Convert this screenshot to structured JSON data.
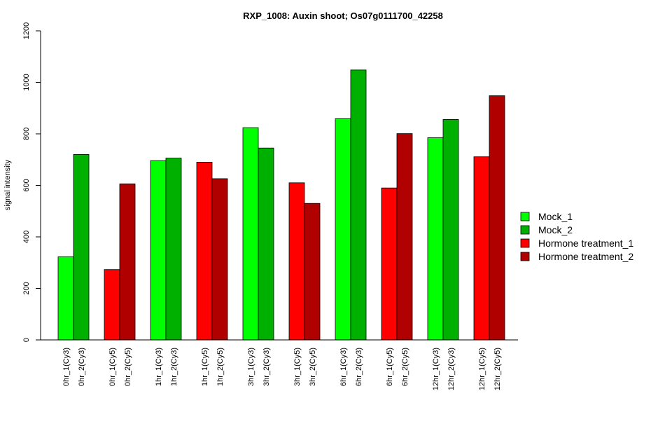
{
  "chart_data": {
    "type": "bar",
    "title": "RXP_1008: Auxin shoot; Os07g0111700_42258",
    "ylabel": "signal intensity",
    "xlabel": "",
    "ylim": [
      0,
      1200
    ],
    "yticks": [
      0,
      200,
      400,
      600,
      800,
      1000,
      1200
    ],
    "grid": false,
    "legend_position": "right",
    "series_colors": {
      "Mock_1": "#00ff00",
      "Mock_2": "#00b000",
      "Hormone treatment_1": "#ff0000",
      "Hormone treatment_2": "#b00000"
    },
    "legend": [
      {
        "name": "Mock_1",
        "color": "#00ff00"
      },
      {
        "name": "Mock_2",
        "color": "#00b000"
      },
      {
        "name": "Hormone treatment_1",
        "color": "#ff0000"
      },
      {
        "name": "Hormone treatment_2",
        "color": "#b00000"
      }
    ],
    "groups": [
      {
        "bars": [
          {
            "label": "0hr_1(Cy3)",
            "value": 323,
            "series": "Mock_1"
          },
          {
            "label": "0hr_2(Cy3)",
            "value": 720,
            "series": "Mock_2"
          }
        ]
      },
      {
        "bars": [
          {
            "label": "0hr_1(Cy5)",
            "value": 273,
            "series": "Hormone treatment_1"
          },
          {
            "label": "0hr_2(Cy5)",
            "value": 606,
            "series": "Hormone treatment_2"
          }
        ]
      },
      {
        "bars": [
          {
            "label": "1hr_1(Cy3)",
            "value": 696,
            "series": "Mock_1"
          },
          {
            "label": "1hr_2(Cy3)",
            "value": 706,
            "series": "Mock_2"
          }
        ]
      },
      {
        "bars": [
          {
            "label": "1hr_1(Cy5)",
            "value": 690,
            "series": "Hormone treatment_1"
          },
          {
            "label": "1hr_2(Cy5)",
            "value": 626,
            "series": "Hormone treatment_2"
          }
        ]
      },
      {
        "bars": [
          {
            "label": "3hr_1(Cy3)",
            "value": 824,
            "series": "Mock_1"
          },
          {
            "label": "3hr_2(Cy3)",
            "value": 745,
            "series": "Mock_2"
          }
        ]
      },
      {
        "bars": [
          {
            "label": "3hr_1(Cy5)",
            "value": 610,
            "series": "Hormone treatment_1"
          },
          {
            "label": "3hr_2(Cy5)",
            "value": 530,
            "series": "Hormone treatment_2"
          }
        ]
      },
      {
        "bars": [
          {
            "label": "6hr_1(Cy3)",
            "value": 859,
            "series": "Mock_1"
          },
          {
            "label": "6hr_2(Cy3)",
            "value": 1048,
            "series": "Mock_2"
          }
        ]
      },
      {
        "bars": [
          {
            "label": "6hr_1(Cy5)",
            "value": 590,
            "series": "Hormone treatment_1"
          },
          {
            "label": "6hr_2(Cy5)",
            "value": 801,
            "series": "Hormone treatment_2"
          }
        ]
      },
      {
        "bars": [
          {
            "label": "12hr_1(Cy3)",
            "value": 785,
            "series": "Mock_1"
          },
          {
            "label": "12hr_2(Cy3)",
            "value": 856,
            "series": "Mock_2"
          }
        ]
      },
      {
        "bars": [
          {
            "label": "12hr_1(Cy5)",
            "value": 711,
            "series": "Hormone treatment_1"
          },
          {
            "label": "12hr_2(Cy5)",
            "value": 948,
            "series": "Hormone treatment_2"
          }
        ]
      }
    ]
  }
}
